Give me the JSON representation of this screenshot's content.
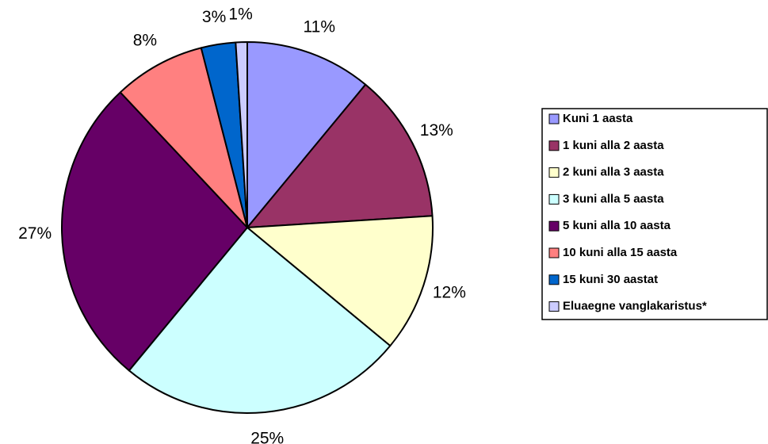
{
  "chart_data": {
    "type": "pie",
    "categories": [
      "Kuni 1 aasta",
      "1 kuni alla 2 aasta",
      "2 kuni alla 3 aasta",
      "3 kuni alla 5 aasta",
      "5 kuni alla 10 aasta",
      "10 kuni alla 15 aasta",
      "15 kuni 30 aastat",
      "Eluaegne vanglakaristus*"
    ],
    "values": [
      11,
      13,
      12,
      25,
      27,
      8,
      3,
      1
    ],
    "value_labels": [
      "11%",
      "13%",
      "12%",
      "25%",
      "27%",
      "8%",
      "3%",
      "1%"
    ],
    "colors": [
      "#9999ff",
      "#993366",
      "#ffffcc",
      "#ccffff",
      "#660066",
      "#ff8080",
      "#0066cc",
      "#ccccff"
    ],
    "legend": "right"
  }
}
